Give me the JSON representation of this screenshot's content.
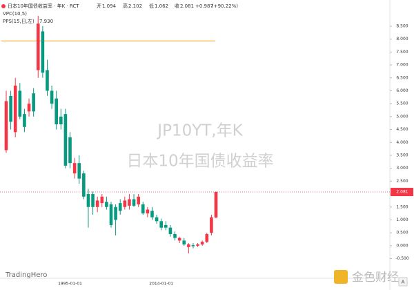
{
  "chart_data": {
    "type": "candlestick",
    "symbol": "日本10年国债收益率 · 年K · RCT",
    "ohlc_labels": [
      "开",
      "高",
      "低",
      "收"
    ],
    "change_label": "+0.987",
    "change_pct_label": "(+90.22%)",
    "volume_indicator": "VPC(10,5)",
    "indicator": {
      "name": "PPS(15,日,左)",
      "value": 7.93,
      "value_label": "7.930",
      "color": "#f5a623"
    },
    "watermark": [
      "JP10YT,年K",
      "日本10年国债收益率"
    ],
    "brand": "TradingHero",
    "logo": "金色财经",
    "axis_button": "A",
    "up_color": "#f23645",
    "down_color": "#089981",
    "categories": [
      null,
      null,
      null,
      null,
      null,
      null,
      null,
      null,
      null,
      null,
      null,
      null,
      null,
      null,
      "1995-01-01",
      null,
      null,
      null,
      null,
      null,
      null,
      null,
      null,
      null,
      null,
      null,
      null,
      null,
      null,
      null,
      null,
      null,
      null,
      null,
      "2014-01-01",
      null,
      null,
      null,
      null,
      null,
      null,
      null,
      null,
      null,
      null,
      null,
      null
    ],
    "open": [
      3.7,
      5.8,
      4.4,
      6.0,
      5.1,
      5.2,
      5.9,
      6.8,
      8.3,
      6.8,
      6.0,
      5.7,
      5.0,
      5.1,
      4.2,
      2.8,
      3.2,
      2.8,
      2.0,
      2.0,
      1.5,
      1.65,
      1.7,
      1.6,
      1.5,
      1.65,
      1.5,
      1.55,
      1.8,
      1.6,
      1.6,
      1.25,
      1.35,
      1.1,
      0.95,
      0.8,
      0.7,
      0.45,
      0.2,
      0.2,
      -0.05,
      0.02,
      0.0,
      0.05,
      0.15,
      0.5,
      1.094
    ],
    "high": [
      6.0,
      6.0,
      6.5,
      6.3,
      5.3,
      5.7,
      6.1,
      8.9,
      8.5,
      7.2,
      6.2,
      6.0,
      5.3,
      5.3,
      4.4,
      3.4,
      3.5,
      2.9,
      2.2,
      2.1,
      1.9,
      2.0,
      1.9,
      1.7,
      1.6,
      1.8,
      1.9,
      2.0,
      2.0,
      2.0,
      1.7,
      1.5,
      1.5,
      1.2,
      1.05,
      0.95,
      0.8,
      0.55,
      0.35,
      0.3,
      0.1,
      0.1,
      0.1,
      0.2,
      0.5,
      1.2,
      2.102
    ],
    "low": [
      3.6,
      4.5,
      4.2,
      4.9,
      4.4,
      5.0,
      5.0,
      6.5,
      6.5,
      5.8,
      5.3,
      4.5,
      4.5,
      3.0,
      3.0,
      2.6,
      2.4,
      1.8,
      0.7,
      1.2,
      1.3,
      1.5,
      1.4,
      0.7,
      0.4,
      1.2,
      1.4,
      1.4,
      1.5,
      1.5,
      1.2,
      1.1,
      1.0,
      0.85,
      0.6,
      0.6,
      0.35,
      0.2,
      0.1,
      0.0,
      -0.3,
      -0.1,
      -0.05,
      0.0,
      0.1,
      0.4,
      1.062
    ],
    "close": [
      5.6,
      4.8,
      6.2,
      5.0,
      4.6,
      5.5,
      5.2,
      8.6,
      6.7,
      6.0,
      5.5,
      4.7,
      4.7,
      3.1,
      3.2,
      3.2,
      2.6,
      1.9,
      1.5,
      1.5,
      1.75,
      1.9,
      1.5,
      0.8,
      1.0,
      1.35,
      1.75,
      1.8,
      1.55,
      1.9,
      1.25,
      1.4,
      1.1,
      0.95,
      0.7,
      0.7,
      0.45,
      0.3,
      0.3,
      0.05,
      0.05,
      -0.02,
      0.05,
      0.15,
      0.45,
      1.1,
      2.081
    ],
    "ylim": [
      -1.18,
      8.98
    ],
    "yticks": [
      {
        "value": -0.5,
        "label": "-0.500"
      },
      {
        "value": 0,
        "label": "0.000"
      },
      {
        "value": 0.5,
        "label": "0.500"
      },
      {
        "value": 1,
        "label": "1.000"
      },
      {
        "value": 1.5,
        "label": "1.500"
      },
      {
        "value": 2,
        "label": "2.000"
      },
      {
        "value": 2.5,
        "label": "2.500"
      },
      {
        "value": 3,
        "label": "3.000"
      },
      {
        "value": 3.5,
        "label": "3.500"
      },
      {
        "value": 4,
        "label": "4.000"
      },
      {
        "value": 4.5,
        "label": "4.500"
      },
      {
        "value": 5,
        "label": "5.000"
      },
      {
        "value": 5.5,
        "label": "5.500"
      },
      {
        "value": 6,
        "label": "6.000"
      },
      {
        "value": 6.5,
        "label": "6.500"
      },
      {
        "value": 7,
        "label": "7.000"
      },
      {
        "value": 7.5,
        "label": "7.500"
      },
      {
        "value": 8,
        "label": "8.000"
      },
      {
        "value": 8.5,
        "label": "8.500"
      }
    ],
    "grid": false
  }
}
